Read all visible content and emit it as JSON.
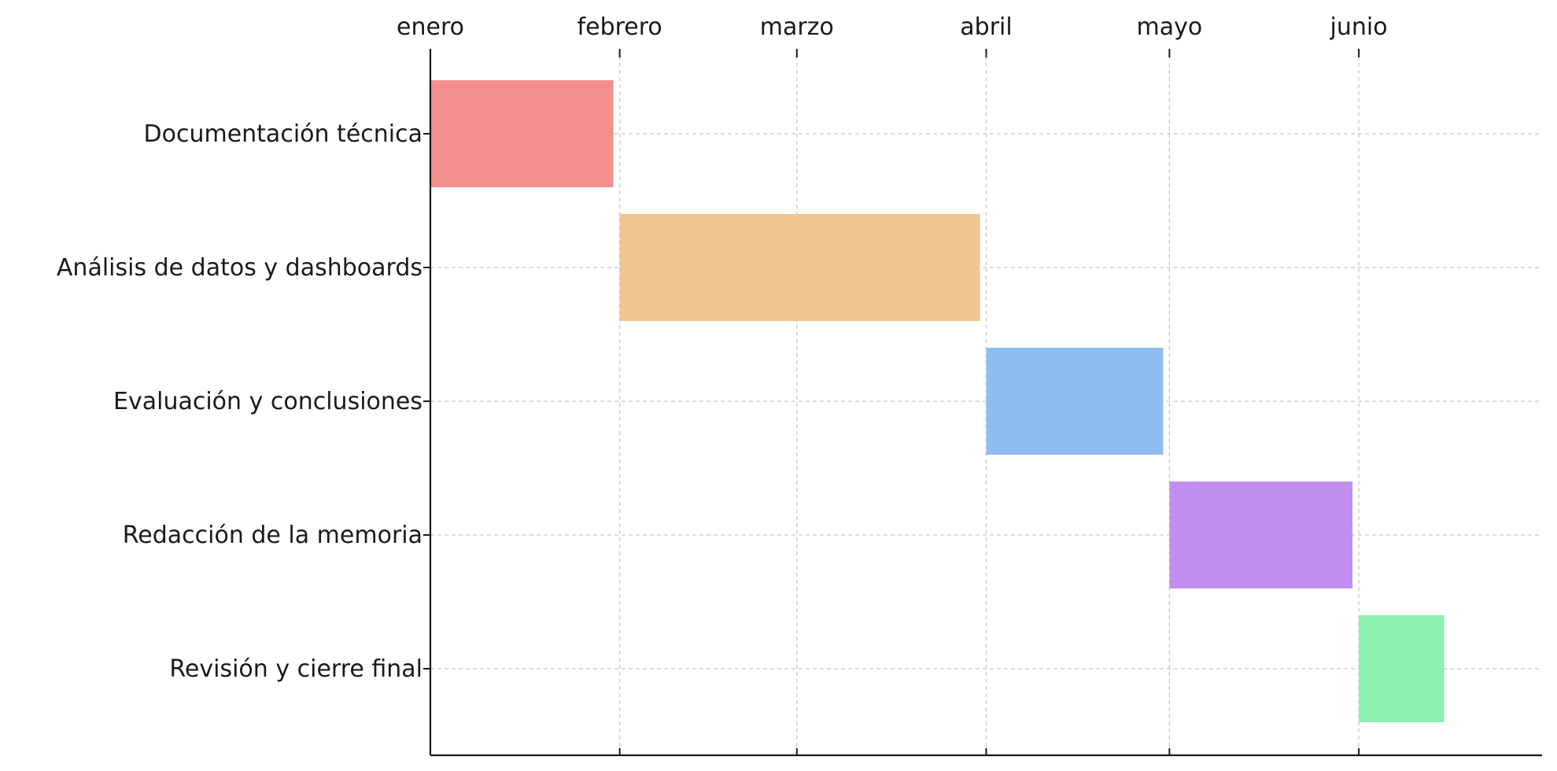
{
  "chart_data": {
    "type": "gantt",
    "title": "",
    "xlabel": "",
    "ylabel": "",
    "x_axis_position": "top",
    "grid": true,
    "xlim": [
      "2024-01-01",
      "2024-06-30"
    ],
    "x_ticks": [
      {
        "date": "2024-01-01",
        "label": "enero"
      },
      {
        "date": "2024-02-01",
        "label": "febrero"
      },
      {
        "date": "2024-03-01",
        "label": "marzo"
      },
      {
        "date": "2024-04-01",
        "label": "abril"
      },
      {
        "date": "2024-05-01",
        "label": "mayo"
      },
      {
        "date": "2024-06-01",
        "label": "junio"
      }
    ],
    "tasks": [
      {
        "name": "Documentación técnica",
        "start": "2024-01-01",
        "end": "2024-01-31",
        "color": "#f28e8e"
      },
      {
        "name": "Análisis de datos y dashboards",
        "start": "2024-02-01",
        "end": "2024-03-31",
        "color": "#f0c78e"
      },
      {
        "name": "Evaluación y conclusiones",
        "start": "2024-04-01",
        "end": "2024-04-30",
        "color": "#8fbdf0"
      },
      {
        "name": "Redacción de la memoria",
        "start": "2024-05-01",
        "end": "2024-05-31",
        "color": "#c28ef0"
      },
      {
        "name": "Revisión y cierre final",
        "start": "2024-06-01",
        "end": "2024-06-15",
        "color": "#8ef0b0"
      }
    ]
  }
}
